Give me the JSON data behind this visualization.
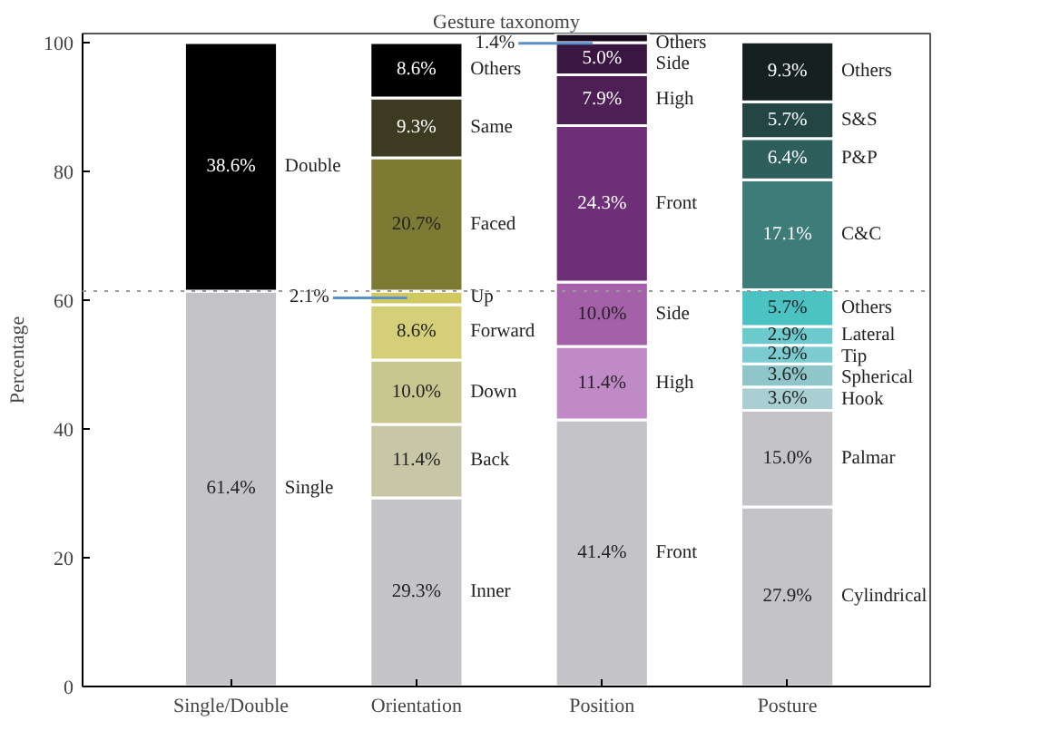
{
  "chart_data": {
    "type": "bar",
    "title": "Gesture taxonomy",
    "ylabel": "Percentage",
    "stacked": true,
    "categories": [
      "Single/Double",
      "Orientation",
      "Position",
      "Posture"
    ],
    "ylim": [
      0,
      101.4
    ],
    "yticks": [
      0,
      20,
      40,
      60,
      80,
      100
    ],
    "grid": false,
    "ref_lines": [
      {
        "axis": "y",
        "value": 61.4,
        "color": "#999999",
        "line_style": "dotted"
      }
    ],
    "series": [
      {
        "name": "Single",
        "color": "#c4c3c8",
        "values": [
          61.4,
          null,
          null,
          null
        ],
        "value_labels": [
          "61.4%",
          null,
          null,
          null
        ]
      },
      {
        "name": "Double",
        "color": "#000000",
        "values": [
          38.6,
          null,
          null,
          null
        ],
        "value_labels": [
          "38.6%",
          null,
          null,
          null
        ]
      },
      {
        "name": "Inner",
        "color": "#c4c3c8",
        "values": [
          null,
          29.3,
          null,
          null
        ],
        "value_labels": [
          null,
          "29.3%",
          null,
          null
        ]
      },
      {
        "name": "Back",
        "color": "#c7c6a6",
        "values": [
          null,
          11.4,
          null,
          null
        ],
        "value_labels": [
          null,
          "11.4%",
          null,
          null
        ]
      },
      {
        "name": "Down",
        "color": "#c9c78f",
        "values": [
          null,
          10.0,
          null,
          null
        ],
        "value_labels": [
          null,
          "10.0%",
          null,
          null
        ]
      },
      {
        "name": "Forward",
        "color": "#d4cf78",
        "values": [
          null,
          8.6,
          null,
          null
        ],
        "value_labels": [
          null,
          "8.6%",
          null,
          null
        ]
      },
      {
        "name": "Up",
        "color": "#cfc960",
        "values": [
          null,
          2.1,
          null,
          null
        ],
        "value_labels": [
          null,
          "2.1%",
          null,
          null
        ]
      },
      {
        "name": "Faced",
        "color": "#7c7a33",
        "values": [
          null,
          20.7,
          null,
          null
        ],
        "value_labels": [
          null,
          "20.7%",
          null,
          null
        ]
      },
      {
        "name": "Same",
        "color": "#3c3b22",
        "values": [
          null,
          9.3,
          null,
          null
        ],
        "value_labels": [
          null,
          "9.3%",
          null,
          null
        ]
      },
      {
        "name": "Others",
        "color": "#000000",
        "values": [
          null,
          8.6,
          null,
          null
        ],
        "value_labels": [
          null,
          "8.6%",
          null,
          null
        ]
      },
      {
        "name": "Front",
        "color": "#c4c3c8",
        "values": [
          null,
          null,
          41.4,
          null
        ],
        "value_labels": [
          null,
          null,
          "41.4%",
          null
        ]
      },
      {
        "name": "High",
        "color": "#c08ac7",
        "values": [
          null,
          null,
          11.4,
          null
        ],
        "value_labels": [
          null,
          null,
          "11.4%",
          null
        ]
      },
      {
        "name": "Side",
        "color": "#a460a8",
        "values": [
          null,
          null,
          10.0,
          null
        ],
        "value_labels": [
          null,
          null,
          "10.0%",
          null
        ]
      },
      {
        "name": "Front",
        "color": "#6e2f78",
        "values": [
          null,
          null,
          24.3,
          null
        ],
        "value_labels": [
          null,
          null,
          "24.3%",
          null
        ]
      },
      {
        "name": "High",
        "color": "#4e1f55",
        "values": [
          null,
          null,
          7.9,
          null
        ],
        "value_labels": [
          null,
          null,
          "7.9%",
          null
        ]
      },
      {
        "name": "Side",
        "color": "#3a1740",
        "values": [
          null,
          null,
          5.0,
          null
        ],
        "value_labels": [
          null,
          null,
          "5.0%",
          null
        ]
      },
      {
        "name": "Others",
        "color": "#1a0a1e",
        "values": [
          null,
          null,
          1.4,
          null
        ],
        "value_labels": [
          null,
          null,
          "1.4%",
          null
        ]
      },
      {
        "name": "Cylindrical",
        "color": "#c4c3c8",
        "values": [
          null,
          null,
          null,
          27.9
        ],
        "value_labels": [
          null,
          null,
          null,
          "27.9%"
        ]
      },
      {
        "name": "Palmar",
        "color": "#c4c3c8",
        "values": [
          null,
          null,
          null,
          15.0
        ],
        "value_labels": [
          null,
          null,
          null,
          "15.0%"
        ]
      },
      {
        "name": "Hook",
        "color": "#a9cfd3",
        "values": [
          null,
          null,
          null,
          3.6
        ],
        "value_labels": [
          null,
          null,
          null,
          "3.6%"
        ]
      },
      {
        "name": "Spherical",
        "color": "#8fc6c9",
        "values": [
          null,
          null,
          null,
          3.6
        ],
        "value_labels": [
          null,
          null,
          null,
          "3.6%"
        ]
      },
      {
        "name": "Tip",
        "color": "#7ccbd0",
        "values": [
          null,
          null,
          null,
          2.9
        ],
        "value_labels": [
          null,
          null,
          null,
          "2.9%"
        ]
      },
      {
        "name": "Lateral",
        "color": "#6cc9cc",
        "values": [
          null,
          null,
          null,
          2.9
        ],
        "value_labels": [
          null,
          null,
          null,
          "2.9%"
        ]
      },
      {
        "name": "Others",
        "color": "#4cc3c3",
        "values": [
          null,
          null,
          null,
          5.7
        ],
        "value_labels": [
          null,
          null,
          null,
          "5.7%"
        ]
      },
      {
        "name": "C&C",
        "color": "#3d7c79",
        "values": [
          null,
          null,
          null,
          17.1
        ],
        "value_labels": [
          null,
          null,
          null,
          "17.1%"
        ]
      },
      {
        "name": "P&P",
        "color": "#2f5f5d",
        "values": [
          null,
          null,
          null,
          6.4
        ],
        "value_labels": [
          null,
          null,
          null,
          "6.4%"
        ]
      },
      {
        "name": "S&S",
        "color": "#234543",
        "values": [
          null,
          null,
          null,
          5.7
        ],
        "value_labels": [
          null,
          null,
          null,
          "5.7%"
        ]
      },
      {
        "name": "Others",
        "color": "#15211f",
        "values": [
          null,
          null,
          null,
          9.3
        ],
        "value_labels": [
          null,
          null,
          null,
          "9.3%"
        ]
      }
    ]
  }
}
